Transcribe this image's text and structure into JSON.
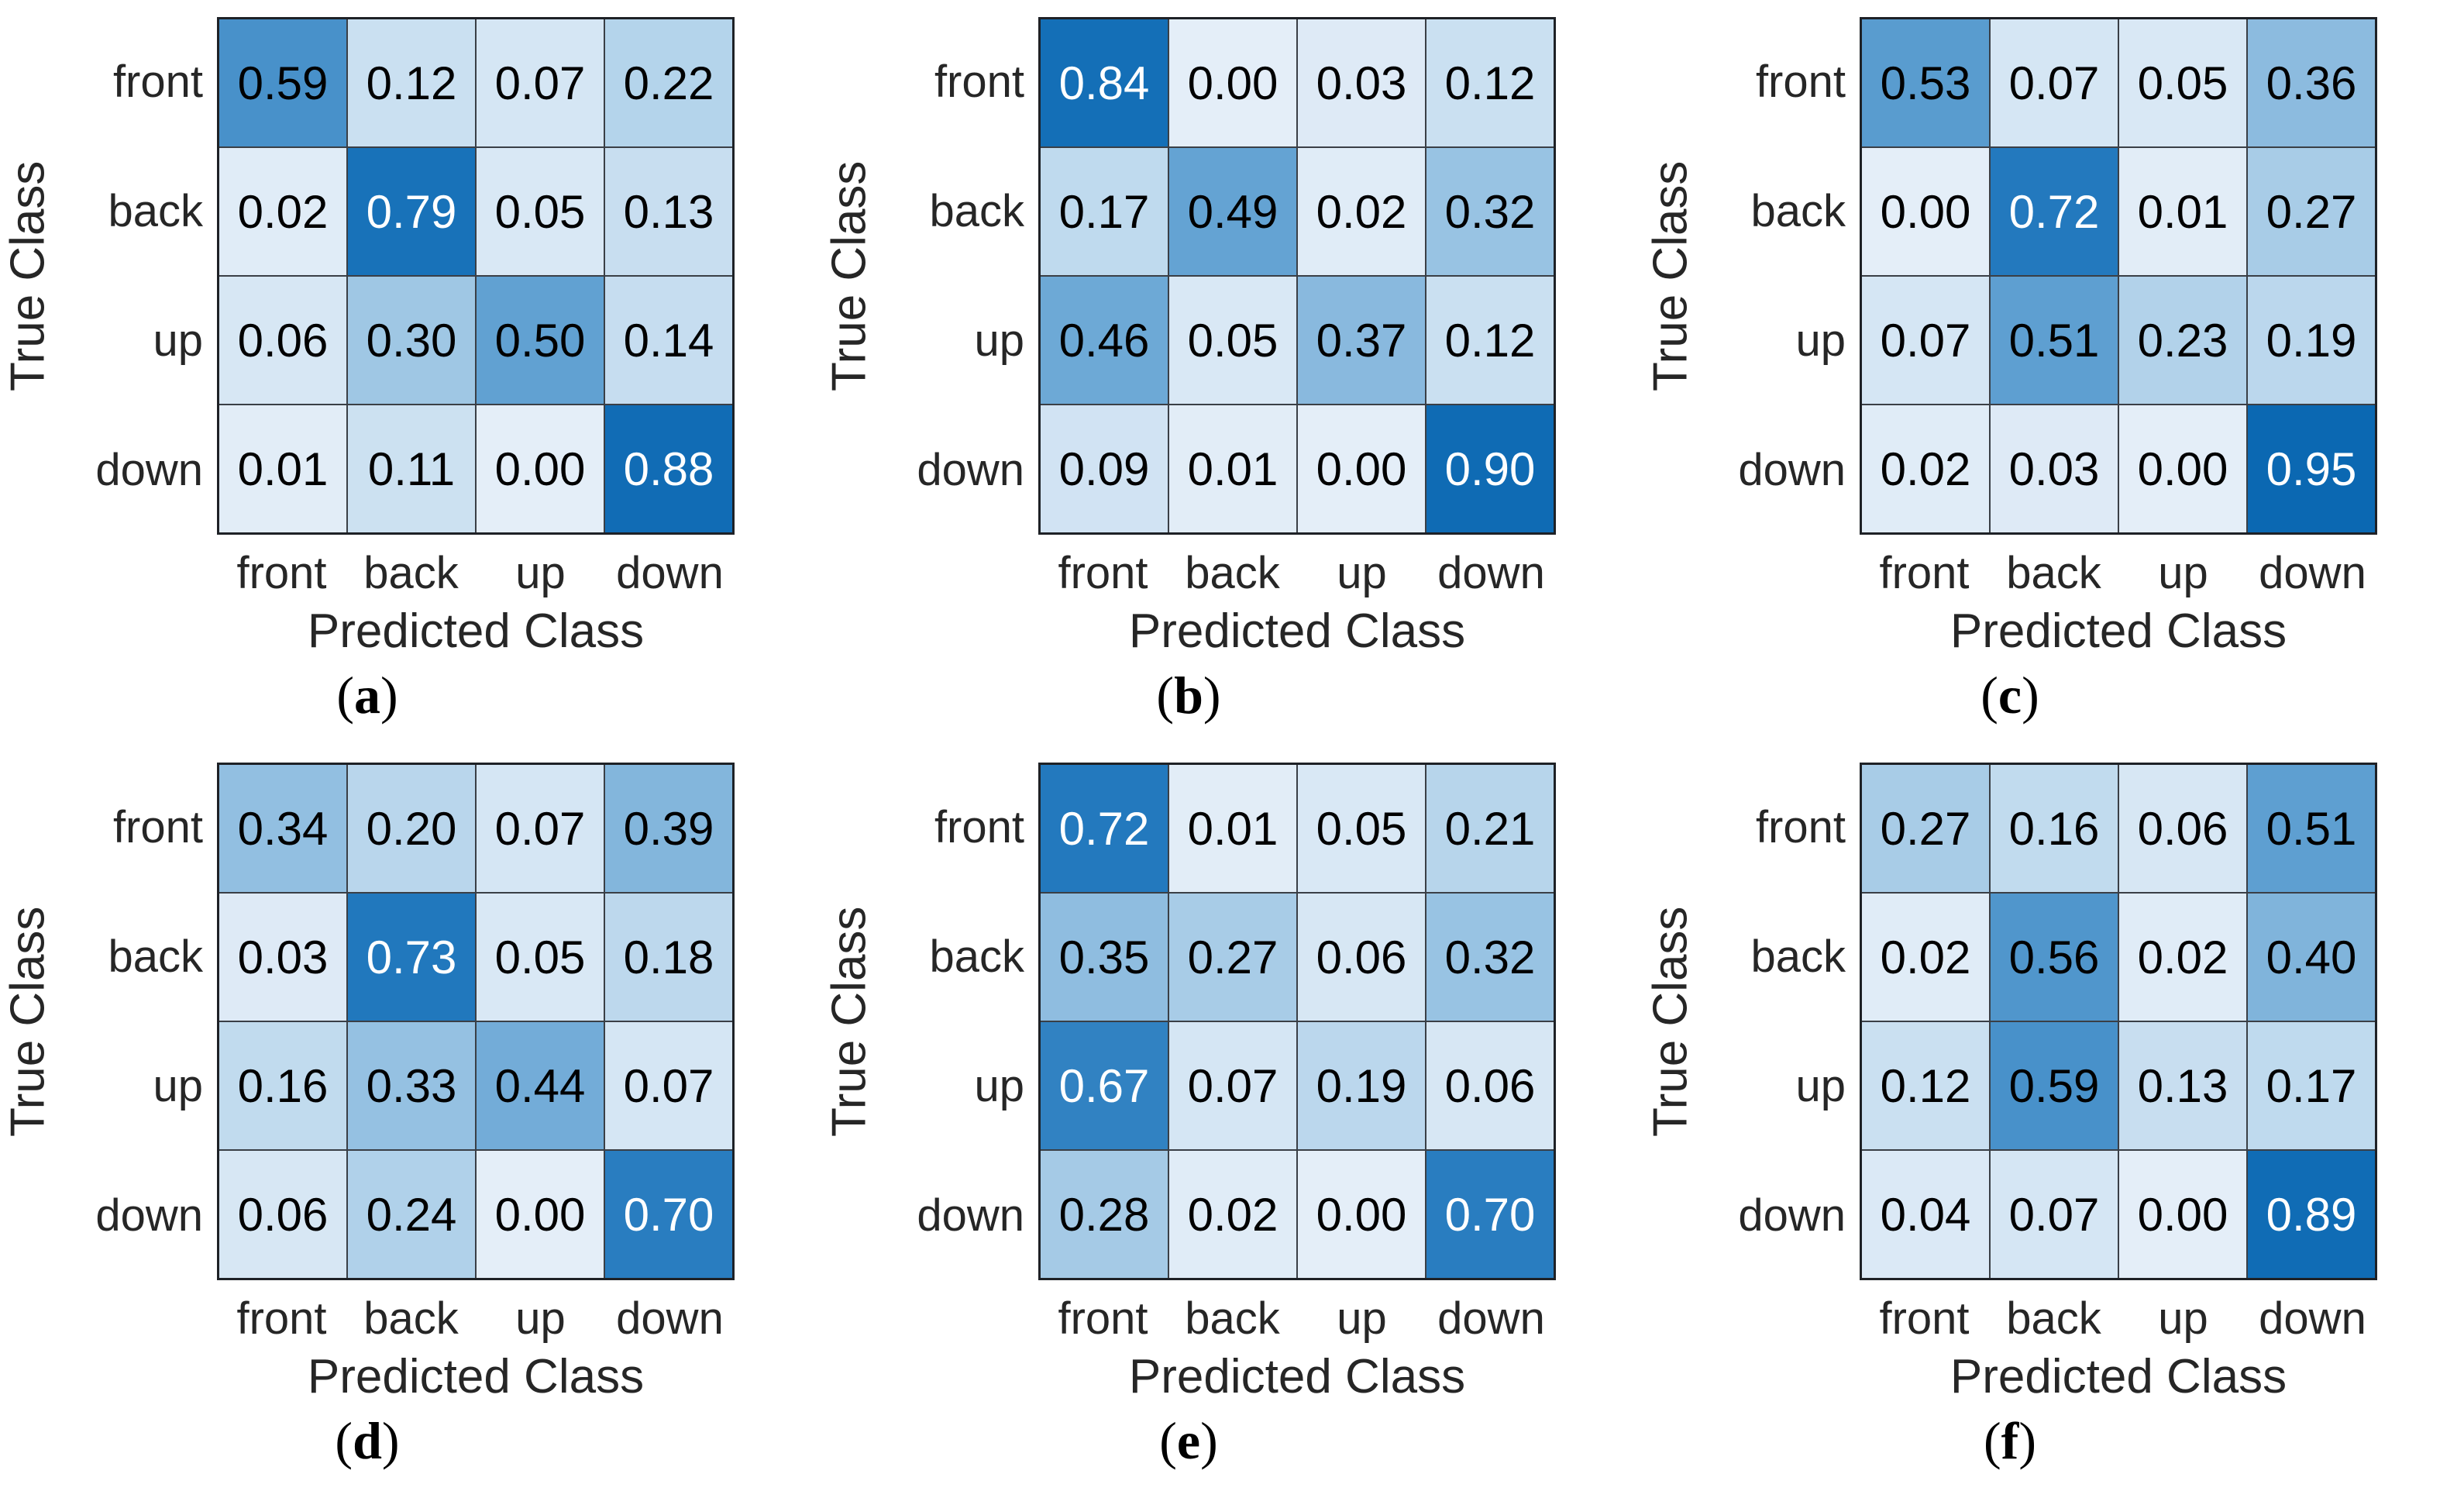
{
  "figure": {
    "xlabel": "Predicted Class",
    "ylabel": "True Class",
    "classes": [
      "front",
      "back",
      "up",
      "down"
    ],
    "caption_open": "(",
    "caption_close": ")"
  },
  "style": {
    "colormap_stops": [
      [
        0.0,
        "#e4eef8"
      ],
      [
        0.25,
        "#aed0e9"
      ],
      [
        0.5,
        "#61a1d2"
      ],
      [
        0.75,
        "#1b74bb"
      ],
      [
        1.0,
        "#0765b0"
      ]
    ],
    "white_text_threshold": 0.63,
    "grid_line_color": "#3a3f46",
    "outer_border_color": "#1e2126",
    "dark_text_color": "#000000",
    "light_text_color": "#ffffff",
    "label_color": "#262626"
  },
  "chart_data": [
    {
      "type": "heatmap",
      "caption": "a",
      "xlabel": "Predicted Class",
      "ylabel": "True Class",
      "x_ticks": [
        "front",
        "back",
        "up",
        "down"
      ],
      "y_ticks": [
        "front",
        "back",
        "up",
        "down"
      ],
      "values": [
        [
          0.59,
          0.12,
          0.07,
          0.22
        ],
        [
          0.02,
          0.79,
          0.05,
          0.13
        ],
        [
          0.06,
          0.3,
          0.5,
          0.14
        ],
        [
          0.01,
          0.11,
          0.0,
          0.88
        ]
      ]
    },
    {
      "type": "heatmap",
      "caption": "b",
      "xlabel": "Predicted Class",
      "ylabel": "True Class",
      "x_ticks": [
        "front",
        "back",
        "up",
        "down"
      ],
      "y_ticks": [
        "front",
        "back",
        "up",
        "down"
      ],
      "values": [
        [
          0.84,
          0.0,
          0.03,
          0.12
        ],
        [
          0.17,
          0.49,
          0.02,
          0.32
        ],
        [
          0.46,
          0.05,
          0.37,
          0.12
        ],
        [
          0.09,
          0.01,
          0.0,
          0.9
        ]
      ]
    },
    {
      "type": "heatmap",
      "caption": "c",
      "xlabel": "Predicted Class",
      "ylabel": "True Class",
      "x_ticks": [
        "front",
        "back",
        "up",
        "down"
      ],
      "y_ticks": [
        "front",
        "back",
        "up",
        "down"
      ],
      "values": [
        [
          0.53,
          0.07,
          0.05,
          0.36
        ],
        [
          0.0,
          0.72,
          0.01,
          0.27
        ],
        [
          0.07,
          0.51,
          0.23,
          0.19
        ],
        [
          0.02,
          0.03,
          0.0,
          0.95
        ]
      ]
    },
    {
      "type": "heatmap",
      "caption": "d",
      "xlabel": "Predicted Class",
      "ylabel": "True Class",
      "x_ticks": [
        "front",
        "back",
        "up",
        "down"
      ],
      "y_ticks": [
        "front",
        "back",
        "up",
        "down"
      ],
      "values": [
        [
          0.34,
          0.2,
          0.07,
          0.39
        ],
        [
          0.03,
          0.73,
          0.05,
          0.18
        ],
        [
          0.16,
          0.33,
          0.44,
          0.07
        ],
        [
          0.06,
          0.24,
          0.0,
          0.7
        ]
      ]
    },
    {
      "type": "heatmap",
      "caption": "e",
      "xlabel": "Predicted Class",
      "ylabel": "True Class",
      "x_ticks": [
        "front",
        "back",
        "up",
        "down"
      ],
      "y_ticks": [
        "front",
        "back",
        "up",
        "down"
      ],
      "values": [
        [
          0.72,
          0.01,
          0.05,
          0.21
        ],
        [
          0.35,
          0.27,
          0.06,
          0.32
        ],
        [
          0.67,
          0.07,
          0.19,
          0.06
        ],
        [
          0.28,
          0.02,
          0.0,
          0.7
        ]
      ]
    },
    {
      "type": "heatmap",
      "caption": "f",
      "xlabel": "Predicted Class",
      "ylabel": "True Class",
      "x_ticks": [
        "front",
        "back",
        "up",
        "down"
      ],
      "y_ticks": [
        "front",
        "back",
        "up",
        "down"
      ],
      "values": [
        [
          0.27,
          0.16,
          0.06,
          0.51
        ],
        [
          0.02,
          0.56,
          0.02,
          0.4
        ],
        [
          0.12,
          0.59,
          0.13,
          0.17
        ],
        [
          0.04,
          0.07,
          0.0,
          0.89
        ]
      ]
    }
  ]
}
